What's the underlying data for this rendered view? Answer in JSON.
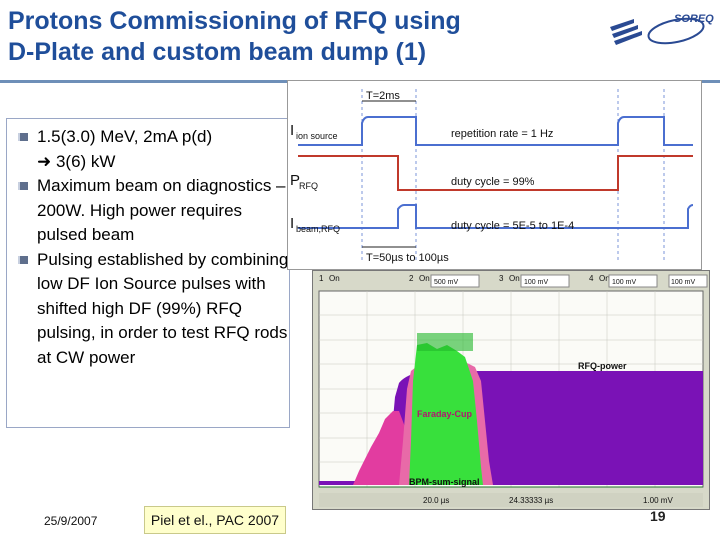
{
  "slide": {
    "title_line1": "Protons Commissioning of RFQ using",
    "title_line2": "D-Plate and custom beam dump (1)",
    "logo_text": "SOREQ",
    "bullets": [
      {
        "text": "1.5(3.0) MeV, 2mA p(d)",
        "sub": "➜ 3(6) kW"
      },
      {
        "text": "Maximum beam on diagnostics – 200W. High power requires pulsed beam"
      },
      {
        "text": "Pulsing established by combining low DF Ion Source pulses with shifted high DF (99%) RFQ pulsing, in order to test RFQ rods at CW power"
      }
    ],
    "footer_date": "25/9/2007",
    "footer_ref": "Piel et el., PAC 2007",
    "page_number": "19"
  },
  "timing_diagram": {
    "t_top": "T=2ms",
    "t_bottom": "T=50µs to 100µs",
    "rows": [
      {
        "label": "I",
        "sub": "ion source",
        "note": "repetition rate = 1 Hz",
        "color": "#4b6fd0"
      },
      {
        "label": "P",
        "sub": "RFQ",
        "note": "duty cycle = 99%",
        "color": "#c0392b"
      },
      {
        "label": "I",
        "sub": "beam,RFQ",
        "note": "duty cycle = 5E-5 to 1E-4",
        "color": "#4b6fd0"
      }
    ]
  },
  "scope": {
    "channels": [
      "1",
      "On",
      "2",
      "On",
      "3",
      "On",
      "4",
      "On"
    ],
    "volts": [
      "500 mV",
      "100 mV",
      "100 mV",
      "100 mV"
    ],
    "labels": {
      "rfq": "RFQ-power",
      "faraday": "Faraday-Cup",
      "bpm": "BPM-sum-signal"
    },
    "timebase": "20.0 µs",
    "delay": "24.33333 µs",
    "trigger": "1.00 mV"
  }
}
